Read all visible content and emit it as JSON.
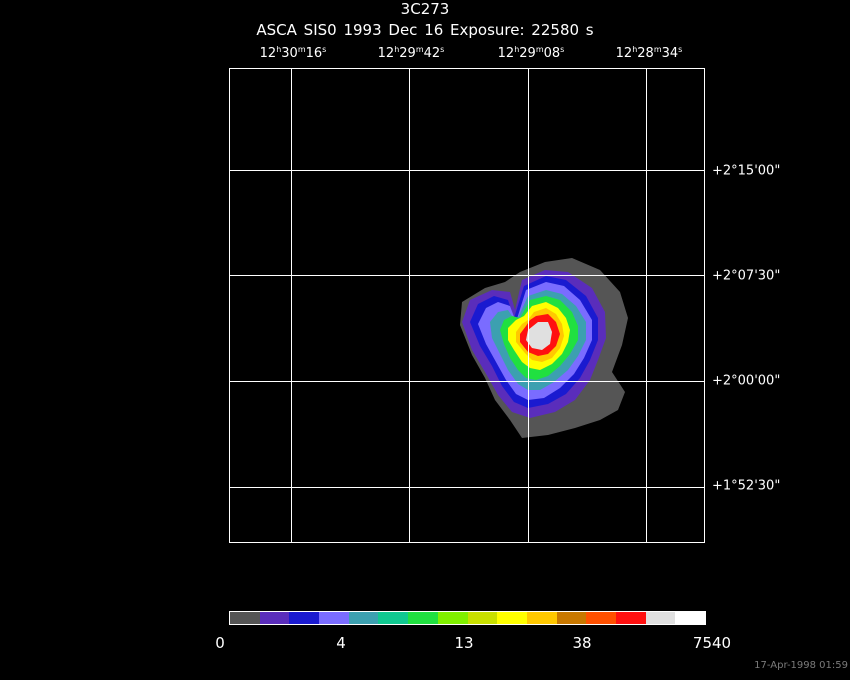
{
  "header": {
    "title": "3C273",
    "subtitle": "ASCA SIS0    1993 Dec 16    Exposure: 22580 s"
  },
  "ra_ticks": [
    {
      "h": "12",
      "m": "30",
      "s": "16"
    },
    {
      "h": "12",
      "m": "29",
      "s": "42"
    },
    {
      "h": "12",
      "m": "29",
      "s": "08"
    },
    {
      "h": "12",
      "m": "28",
      "s": "34"
    }
  ],
  "dec_ticks": [
    "+2°15'00\"",
    "+2°07'30\"",
    "+2°00'00\"",
    "+1°52'30\""
  ],
  "colorbar": {
    "colors": [
      "#555555",
      "#5a2dbb",
      "#1a1ad0",
      "#7a6cff",
      "#3ca0b0",
      "#10c890",
      "#20e040",
      "#80f000",
      "#c8e000",
      "#ffff00",
      "#ffc800",
      "#c87800",
      "#ff5000",
      "#ff1010",
      "#e0e0e0",
      "#ffffff"
    ],
    "labels": [
      "0",
      "4",
      "13",
      "38",
      "7540"
    ]
  },
  "timestamp": "17-Apr-1998 01:59",
  "contour_colors": {
    "outer_gray": "#555555",
    "purple": "#5a2dbb",
    "blue": "#1a1ad0",
    "lavender": "#7a6cff",
    "teal": "#3ca0b0",
    "green": "#20e040",
    "yellow": "#ffff00",
    "orange": "#ffc800",
    "red": "#ff1010",
    "core": "#e0e0e0"
  }
}
